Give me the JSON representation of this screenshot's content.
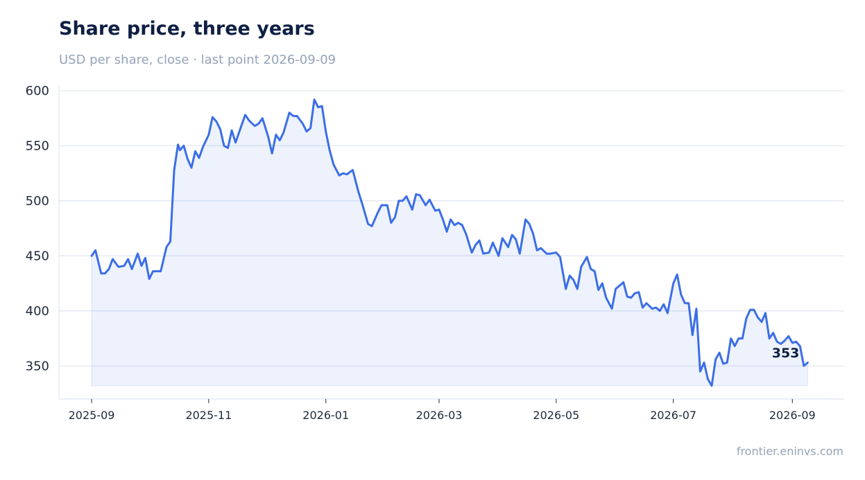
{
  "colors": {
    "line": "#3b6ee6",
    "area": "#eef3fd",
    "grid": "#dfe5f0",
    "title": "#0f1f44",
    "muted": "#94a3b8"
  },
  "chart_data": {
    "type": "area",
    "title": "Share price, three years",
    "subtitle": "USD per share, close · last point 2026-09-09",
    "xlabel": "",
    "ylabel": "",
    "ylim": [
      320,
      605
    ],
    "xlim": [
      "2025-08-15",
      "2026-09-28"
    ],
    "area_baseline": 332,
    "grid": "horizontal",
    "yticks": [
      350,
      400,
      450,
      500,
      550,
      600
    ],
    "xticks": [
      "2025-09",
      "2025-11",
      "2026-01",
      "2026-03",
      "2026-05",
      "2026-07",
      "2026-09"
    ],
    "last_point_label": "353",
    "series": [
      {
        "x": [
          "2025-09-01",
          "2025-09-03",
          "2025-09-06",
          "2025-09-08",
          "2025-09-10",
          "2025-09-12",
          "2025-09-15",
          "2025-09-18",
          "2025-09-20",
          "2025-09-22",
          "2025-09-25",
          "2025-09-27",
          "2025-09-29",
          "2025-10-01",
          "2025-10-03",
          "2025-10-05",
          "2025-10-07",
          "2025-10-10",
          "2025-10-12",
          "2025-10-14",
          "2025-10-16",
          "2025-10-17",
          "2025-10-19",
          "2025-10-21",
          "2025-10-23",
          "2025-10-25",
          "2025-10-27",
          "2025-10-29",
          "2025-11-01",
          "2025-11-03",
          "2025-11-05",
          "2025-11-07",
          "2025-11-09",
          "2025-11-11",
          "2025-11-13",
          "2025-11-15",
          "2025-11-18",
          "2025-11-20",
          "2025-11-22",
          "2025-11-25",
          "2025-11-27",
          "2025-11-29",
          "2025-12-02",
          "2025-12-04",
          "2025-12-06",
          "2025-12-08",
          "2025-12-10",
          "2025-12-13",
          "2025-12-15",
          "2025-12-17",
          "2025-12-20",
          "2025-12-22",
          "2025-12-24",
          "2025-12-26",
          "2025-12-28",
          "2025-12-30",
          "2026-01-01",
          "2026-01-03",
          "2026-01-05",
          "2026-01-08",
          "2026-01-10",
          "2026-01-12",
          "2026-01-15",
          "2026-01-18",
          "2026-01-20",
          "2026-01-23",
          "2026-01-25",
          "2026-01-28",
          "2026-01-30",
          "2026-02-02",
          "2026-02-04",
          "2026-02-06",
          "2026-02-08",
          "2026-02-10",
          "2026-02-12",
          "2026-02-15",
          "2026-02-17",
          "2026-02-19",
          "2026-02-22",
          "2026-02-24",
          "2026-02-27",
          "2026-03-01",
          "2026-03-03",
          "2026-03-05",
          "2026-03-07",
          "2026-03-09",
          "2026-03-11",
          "2026-03-13",
          "2026-03-15",
          "2026-03-18",
          "2026-03-20",
          "2026-03-22",
          "2026-03-24",
          "2026-03-27",
          "2026-03-29",
          "2026-04-01",
          "2026-04-03",
          "2026-04-06",
          "2026-04-08",
          "2026-04-10",
          "2026-04-12",
          "2026-04-15",
          "2026-04-17",
          "2026-04-19",
          "2026-04-21",
          "2026-04-23",
          "2026-04-26",
          "2026-04-28",
          "2026-05-01",
          "2026-05-03",
          "2026-05-06",
          "2026-05-08",
          "2026-05-10",
          "2026-05-12",
          "2026-05-14",
          "2026-05-17",
          "2026-05-19",
          "2026-05-21",
          "2026-05-23",
          "2026-05-25",
          "2026-05-27",
          "2026-05-30",
          "2026-06-01",
          "2026-06-03",
          "2026-06-05",
          "2026-06-07",
          "2026-06-09",
          "2026-06-11",
          "2026-06-13",
          "2026-06-15",
          "2026-06-17",
          "2026-06-20",
          "2026-06-22",
          "2026-06-24",
          "2026-06-26",
          "2026-06-28",
          "2026-07-01",
          "2026-07-03",
          "2026-07-05",
          "2026-07-07",
          "2026-07-09",
          "2026-07-11",
          "2026-07-13",
          "2026-07-15",
          "2026-07-17",
          "2026-07-19",
          "2026-07-21",
          "2026-07-23",
          "2026-07-25",
          "2026-07-27",
          "2026-07-29",
          "2026-07-31",
          "2026-08-02",
          "2026-08-04",
          "2026-08-06",
          "2026-08-08",
          "2026-08-10",
          "2026-08-12",
          "2026-08-14",
          "2026-08-16",
          "2026-08-18",
          "2026-08-20",
          "2026-08-22",
          "2026-08-24",
          "2026-08-26",
          "2026-08-28",
          "2026-08-30",
          "2026-09-01",
          "2026-09-03",
          "2026-09-05",
          "2026-09-07",
          "2026-09-09"
        ],
        "y": [
          450,
          455,
          434,
          434,
          438,
          447,
          440,
          441,
          447,
          438,
          452,
          441,
          448,
          429,
          436,
          436,
          436,
          458,
          463,
          528,
          551,
          546,
          550,
          538,
          530,
          545,
          539,
          549,
          560,
          576,
          572,
          565,
          550,
          548,
          564,
          553,
          568,
          578,
          573,
          568,
          570,
          575,
          558,
          543,
          560,
          555,
          562,
          580,
          577,
          577,
          570,
          563,
          566,
          592,
          585,
          586,
          563,
          546,
          533,
          523,
          525,
          524,
          528,
          508,
          497,
          479,
          477,
          489,
          496,
          496,
          480,
          485,
          500,
          500,
          504,
          492,
          506,
          505,
          496,
          501,
          491,
          492,
          483,
          472,
          483,
          478,
          480,
          478,
          470,
          453,
          460,
          464,
          452,
          453,
          462,
          450,
          466,
          458,
          469,
          465,
          452,
          483,
          479,
          470,
          455,
          457,
          452,
          452,
          453,
          449,
          420,
          432,
          428,
          420,
          440,
          449,
          438,
          436,
          419,
          425,
          412,
          402,
          420,
          423,
          426,
          413,
          412,
          416,
          417,
          403,
          407,
          402,
          403,
          400,
          406,
          398,
          425,
          433,
          415,
          407,
          407,
          378,
          402,
          345,
          353,
          338,
          332,
          356,
          362,
          352,
          353,
          375,
          368,
          375,
          375,
          393,
          401,
          401,
          394,
          390,
          398,
          375,
          380,
          372,
          370,
          373,
          377,
          371,
          372,
          368,
          350,
          353
        ]
      }
    ]
  },
  "footer": {
    "source": "frontier.eninvs.com"
  }
}
